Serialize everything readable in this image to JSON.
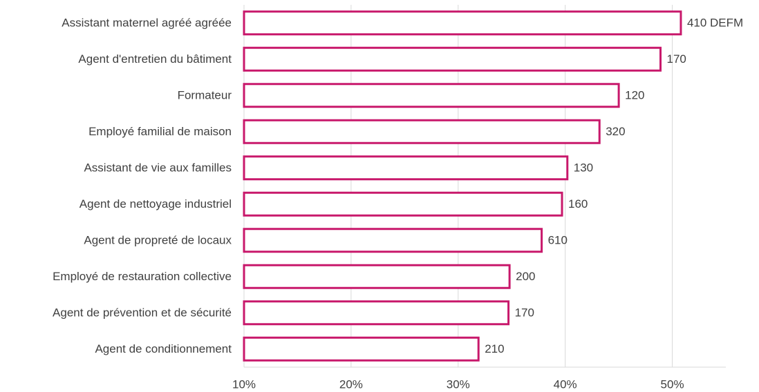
{
  "chart_data": {
    "type": "barh",
    "categories": [
      "Assistant maternel agréé agréée",
      "Agent d'entretien du bâtiment",
      "Formateur",
      "Employé familial de maison",
      "Assistant de vie aux familles",
      "Agent de nettoyage industriel",
      "Agent de propreté de locaux",
      "Employé de restauration collective",
      "Agent de prévention et de sécurité",
      "Agent de conditionnement"
    ],
    "values": [
      50.8,
      48.9,
      45.0,
      43.2,
      40.2,
      39.7,
      37.8,
      34.8,
      34.7,
      31.9
    ],
    "bar_labels": [
      "410 DEFM",
      "170",
      "120",
      "320",
      "130",
      "160",
      "610",
      "200",
      "170",
      "210"
    ],
    "color": "#c8186b",
    "xlim": [
      10,
      55
    ],
    "xticks": [
      {
        "value": 10,
        "label": "10%"
      },
      {
        "value": 20,
        "label": "20%"
      },
      {
        "value": 30,
        "label": "30%"
      },
      {
        "value": 40,
        "label": "40%"
      },
      {
        "value": 50,
        "label": "50%"
      }
    ],
    "grid": true
  }
}
